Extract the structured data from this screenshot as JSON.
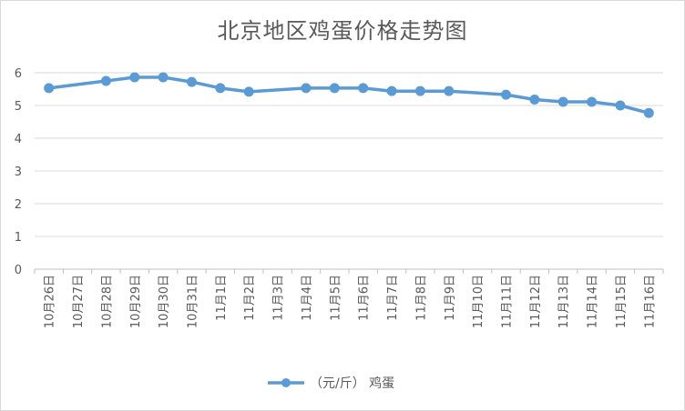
{
  "chart_data": {
    "type": "line",
    "title": "北京地区鸡蛋价格走势图",
    "categories": [
      "10月26日",
      "10月27日",
      "10月28日",
      "10月29日",
      "10月30日",
      "10月31日",
      "11月1日",
      "11月2日",
      "11月3日",
      "11月4日",
      "11月5日",
      "11月6日",
      "11月7日",
      "11月8日",
      "11月9日",
      "11月10日",
      "11月11日",
      "11月12日",
      "11月13日",
      "11月14日",
      "11月15日",
      "11月16日"
    ],
    "series": [
      {
        "name": "（元/斤） 鸡蛋",
        "color": "#5b9bd5",
        "values": [
          5.53,
          null,
          5.75,
          5.86,
          5.86,
          5.72,
          5.53,
          5.42,
          null,
          5.53,
          5.53,
          5.53,
          5.44,
          5.44,
          5.44,
          null,
          5.33,
          5.18,
          5.11,
          5.11,
          5.0,
          4.77
        ]
      }
    ],
    "ylim": [
      0,
      6
    ],
    "yticks": [
      0,
      1,
      2,
      3,
      4,
      5,
      6
    ],
    "grid": true,
    "legend": "bottom",
    "xlabel": "",
    "ylabel": ""
  }
}
